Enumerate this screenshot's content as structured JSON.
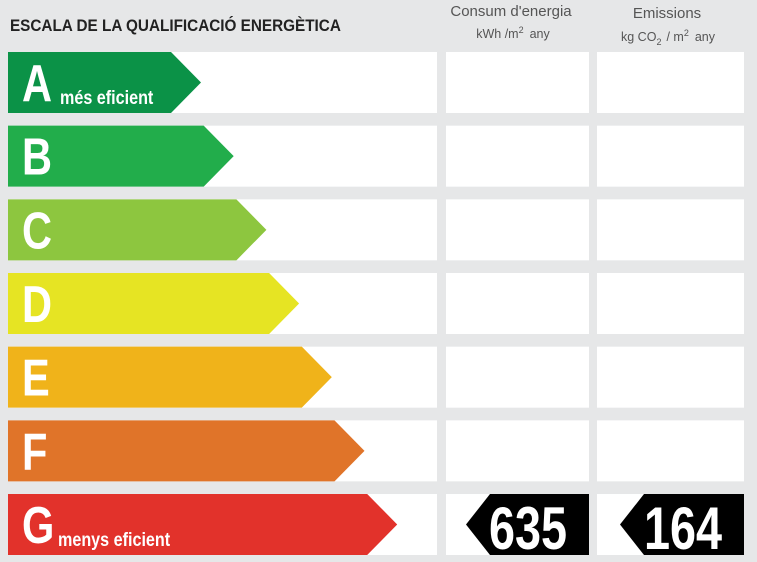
{
  "header": {
    "title": "ESCALA DE LA QUALIFICACIÓ ENERGÈTICA",
    "consumption": {
      "title": "Consum d'energia",
      "unit": "kWh /m",
      "unit_sup": "2",
      "unit_end": "any"
    },
    "emissions": {
      "title": "Emissions",
      "unit": "kg CO",
      "unit_sub": "2",
      "unit_mid": "/ m",
      "unit_sup": "2",
      "unit_end": "any"
    }
  },
  "rows": [
    {
      "letter": "A",
      "label": "més eficient",
      "color": "#0b9247"
    },
    {
      "letter": "B",
      "color": "#22ad4b"
    },
    {
      "letter": "C",
      "color": "#8dc63f"
    },
    {
      "letter": "D",
      "color": "#e6e423"
    },
    {
      "letter": "E",
      "color": "#f0b31a"
    },
    {
      "letter": "F",
      "color": "#e07429"
    },
    {
      "letter": "G",
      "label": "menys eficient",
      "color": "#e2322b"
    }
  ],
  "rating": {
    "row": 6,
    "consumption": 635,
    "emissions": 164
  }
}
